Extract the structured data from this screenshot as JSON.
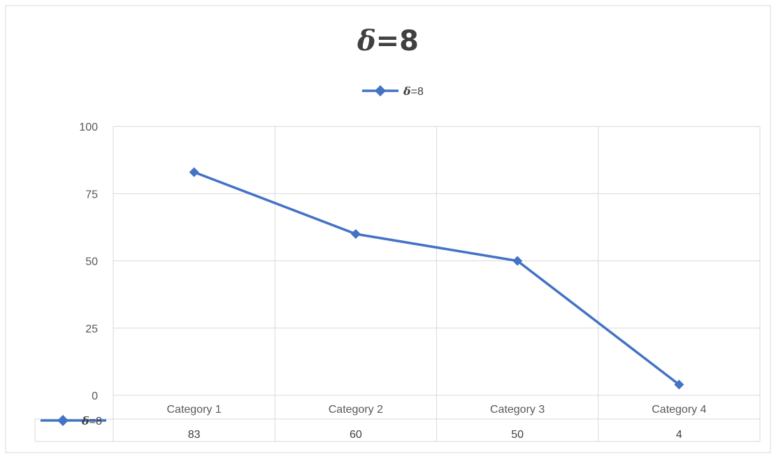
{
  "chart_data": {
    "type": "line",
    "title_symbol": "δ",
    "title_rest": "=8",
    "categories": [
      "Category 1",
      "Category 2",
      "Category 3",
      "Category 4"
    ],
    "series": [
      {
        "name_symbol": "δ",
        "name_rest": "=8",
        "values": [
          83,
          60,
          50,
          4
        ],
        "color": "#4472c4",
        "marker": "diamond"
      }
    ],
    "ylim": [
      0,
      100
    ],
    "yticks": [
      0,
      25,
      50,
      75,
      100
    ],
    "grid": true,
    "legend_position": "top",
    "data_table": true,
    "xlabel": "",
    "ylabel": ""
  }
}
